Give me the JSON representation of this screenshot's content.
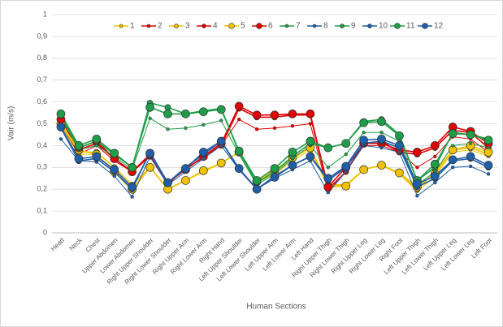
{
  "chart_data": {
    "type": "line",
    "x_label": "Human Sections",
    "y_label": "Vair (m/s)",
    "categories": [
      "Head",
      "Neck",
      "Chest",
      "Upper Abdomen",
      "Lower Abdomen",
      "Right Upper Shoulder",
      "Right Lower Shoulder",
      "Right Upper Arm",
      "Right Lower Arm",
      "Right Hand",
      "Left Upper Shoulder",
      "Left Lower Shoulder",
      "Left Upper Arm",
      "Left Lower Arm",
      "Left Hand",
      "Right Upper Thigh",
      "Right Lower Thigh",
      "Right Upper Leg",
      "Right Lower Leg",
      "Right Foot",
      "Left Upper Thigh",
      "Left Lower Thigh",
      "Left Upper Leg",
      "Left Lower Leg",
      "Left Foot"
    ],
    "ylim": [
      0,
      1
    ],
    "yticks": [
      0,
      {
        "value": 0.1,
        "label": "0,1"
      },
      {
        "value": 0.2,
        "label": "0,2"
      },
      {
        "value": 0.3,
        "label": "0,3"
      },
      {
        "value": 0.4,
        "label": "0,4"
      },
      {
        "value": 0.5,
        "label": "0,5"
      },
      {
        "value": 0.6,
        "label": "0,6"
      },
      {
        "value": 0.7,
        "label": "0,7"
      },
      {
        "value": 0.8,
        "label": "0,8"
      },
      {
        "value": 0.9,
        "label": "0,9"
      },
      1
    ],
    "grid": true,
    "legend": "top",
    "series": [
      {
        "name": "1",
        "color": "#f2c200",
        "marker_size": 2,
        "values": [
          0.49,
          0.36,
          0.36,
          0.28,
          0.19,
          0.3,
          0.2,
          0.24,
          0.28,
          0.32,
          0.37,
          0.23,
          0.27,
          0.33,
          0.38,
          0.21,
          0.22,
          0.29,
          0.31,
          0.27,
          0.19,
          0.26,
          0.37,
          0.38,
          0.35
        ]
      },
      {
        "name": "2",
        "color": "#e00000",
        "marker_size": 2,
        "values": [
          0.5,
          0.36,
          0.4,
          0.33,
          0.28,
          0.35,
          0.22,
          0.3,
          0.34,
          0.4,
          0.52,
          0.475,
          0.48,
          0.49,
          0.5,
          0.19,
          0.28,
          0.4,
          0.4,
          0.37,
          0.3,
          0.35,
          0.44,
          0.43,
          0.37
        ]
      },
      {
        "name": "3",
        "color": "#f2c200",
        "marker_size": 3.5,
        "values": [
          0.5,
          0.37,
          0.37,
          0.3,
          0.22,
          0.3,
          0.2,
          0.24,
          0.28,
          0.32,
          0.37,
          0.23,
          0.29,
          0.34,
          0.39,
          0.22,
          0.22,
          0.29,
          0.31,
          0.27,
          0.2,
          0.28,
          0.38,
          0.39,
          0.36
        ]
      },
      {
        "name": "4",
        "color": "#e00000",
        "marker_size": 3.5,
        "values": [
          0.52,
          0.38,
          0.41,
          0.34,
          0.28,
          0.35,
          0.23,
          0.29,
          0.35,
          0.4,
          0.57,
          0.53,
          0.53,
          0.54,
          0.54,
          0.2,
          0.28,
          0.41,
          0.42,
          0.37,
          0.36,
          0.39,
          0.47,
          0.46,
          0.39
        ]
      },
      {
        "name": "5",
        "color": "#f2c200",
        "marker_size": 5,
        "values": [
          0.5,
          0.38,
          0.36,
          0.28,
          0.2,
          0.3,
          0.2,
          0.24,
          0.285,
          0.32,
          0.37,
          0.235,
          0.28,
          0.345,
          0.39,
          0.21,
          0.215,
          0.29,
          0.31,
          0.275,
          0.21,
          0.27,
          0.38,
          0.4,
          0.37
        ]
      },
      {
        "name": "6",
        "color": "#e00000",
        "marker_size": 5,
        "values": [
          0.52,
          0.39,
          0.42,
          0.34,
          0.28,
          0.36,
          0.23,
          0.29,
          0.35,
          0.41,
          0.58,
          0.54,
          0.54,
          0.545,
          0.545,
          0.21,
          0.3,
          0.41,
          0.41,
          0.38,
          0.37,
          0.4,
          0.485,
          0.465,
          0.41
        ]
      },
      {
        "name": "7",
        "color": "#1e9e48",
        "marker_size": 2,
        "values": [
          0.53,
          0.38,
          0.4,
          0.35,
          0.29,
          0.525,
          0.475,
          0.48,
          0.495,
          0.515,
          0.36,
          0.22,
          0.27,
          0.34,
          0.4,
          0.3,
          0.36,
          0.46,
          0.46,
          0.42,
          0.22,
          0.28,
          0.4,
          0.41,
          0.39
        ]
      },
      {
        "name": "8",
        "color": "#1f5fa8",
        "marker_size": 2,
        "values": [
          0.43,
          0.33,
          0.325,
          0.26,
          0.165,
          0.35,
          0.22,
          0.28,
          0.34,
          0.4,
          0.29,
          0.2,
          0.25,
          0.29,
          0.33,
          0.185,
          0.28,
          0.4,
          0.39,
          0.37,
          0.17,
          0.23,
          0.3,
          0.305,
          0.27
        ]
      },
      {
        "name": "9",
        "color": "#1e9e48",
        "marker_size": 3.5,
        "values": [
          0.54,
          0.39,
          0.42,
          0.36,
          0.3,
          0.595,
          0.575,
          0.545,
          0.56,
          0.57,
          0.37,
          0.23,
          0.28,
          0.35,
          0.41,
          0.39,
          0.41,
          0.51,
          0.52,
          0.45,
          0.24,
          0.3,
          0.46,
          0.45,
          0.43
        ]
      },
      {
        "name": "10",
        "color": "#1f5fa8",
        "marker_size": 3.5,
        "values": [
          0.48,
          0.33,
          0.34,
          0.28,
          0.2,
          0.37,
          0.23,
          0.3,
          0.36,
          0.42,
          0.29,
          0.2,
          0.26,
          0.31,
          0.35,
          0.24,
          0.3,
          0.41,
          0.42,
          0.39,
          0.21,
          0.25,
          0.33,
          0.34,
          0.3
        ]
      },
      {
        "name": "11",
        "color": "#1e9e48",
        "marker_size": 5,
        "values": [
          0.545,
          0.4,
          0.43,
          0.365,
          0.3,
          0.575,
          0.545,
          0.545,
          0.555,
          0.565,
          0.375,
          0.24,
          0.295,
          0.37,
          0.42,
          0.39,
          0.41,
          0.505,
          0.51,
          0.445,
          0.24,
          0.315,
          0.455,
          0.45,
          0.425
        ]
      },
      {
        "name": "12",
        "color": "#1f5fa8",
        "marker_size": 5,
        "values": [
          0.485,
          0.34,
          0.35,
          0.29,
          0.21,
          0.365,
          0.23,
          0.295,
          0.37,
          0.42,
          0.295,
          0.2,
          0.255,
          0.31,
          0.35,
          0.25,
          0.305,
          0.425,
          0.43,
          0.4,
          0.225,
          0.26,
          0.335,
          0.35,
          0.31
        ]
      }
    ]
  }
}
